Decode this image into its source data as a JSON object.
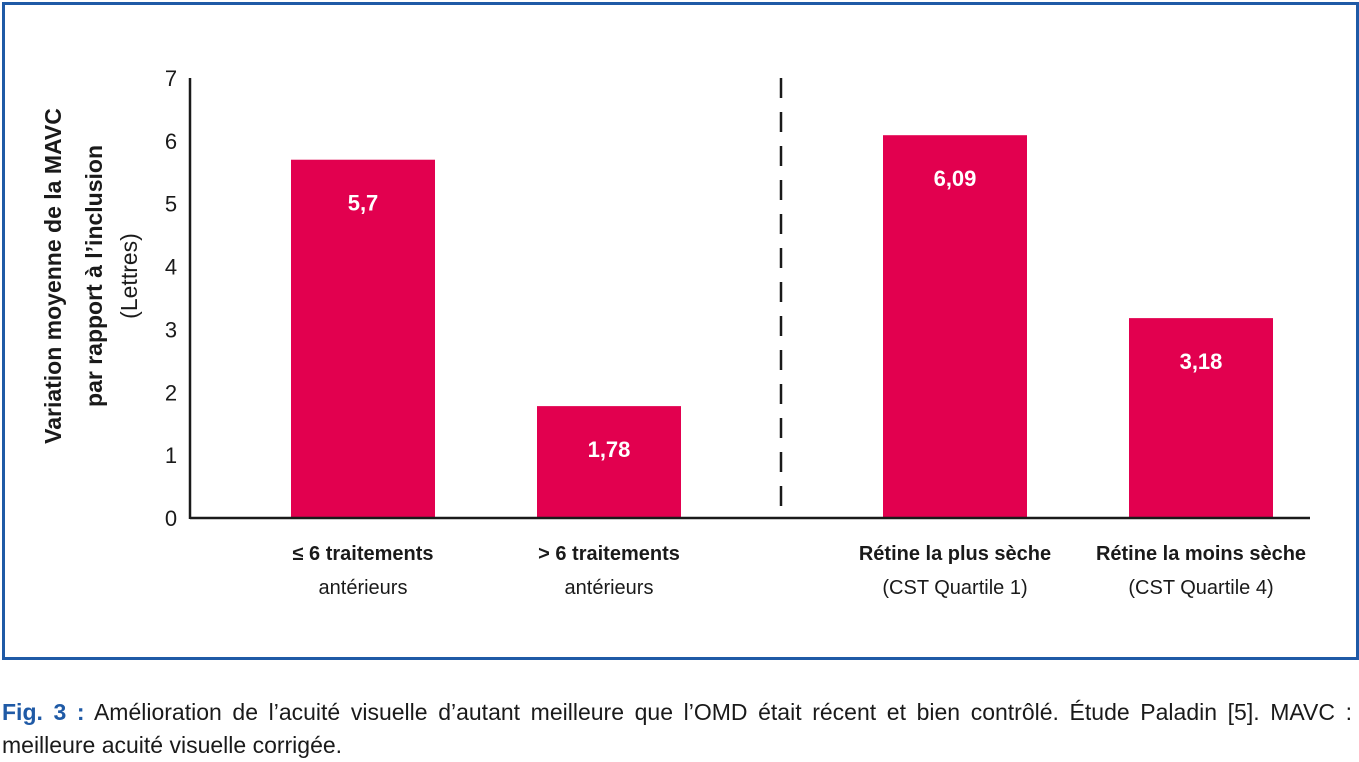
{
  "colors": {
    "bar": "#e2004f",
    "frame": "#1f5aa6",
    "axis": "#1a1a1a"
  },
  "chart_data": {
    "type": "bar",
    "categories": [
      {
        "line1": "≤ 6 traitements",
        "line2": "antérieurs"
      },
      {
        "line1": "> 6 traitements",
        "line2": "antérieurs"
      },
      {
        "line1": "Rétine la plus sèche",
        "line2": "(CST Quartile 1)"
      },
      {
        "line1": "Rétine la moins sèche",
        "line2": "(CST Quartile 4)"
      }
    ],
    "values": [
      5.7,
      1.78,
      6.09,
      3.18
    ],
    "value_labels": [
      "5,7",
      "1,78",
      "6,09",
      "3,18"
    ],
    "ylabel": {
      "line1": "Variation moyenne de la MAVC",
      "line2": "par rapport à l’inclusion",
      "line3": "(Lettres)"
    },
    "ylim": [
      0,
      7
    ],
    "yticks": [
      "0",
      "1",
      "2",
      "3",
      "4",
      "5",
      "6",
      "7"
    ],
    "separator": "dashed vertical line between groups 2 and 3",
    "grid": false
  },
  "caption": {
    "lead": "Fig. 3 :",
    "text": " Amélioration de l’acuité visuelle d’autant meilleure que l’OMD était récent et bien contrôlé. Étude Paladin [5]. MAVC : meilleure acuité visuelle corrigée."
  }
}
